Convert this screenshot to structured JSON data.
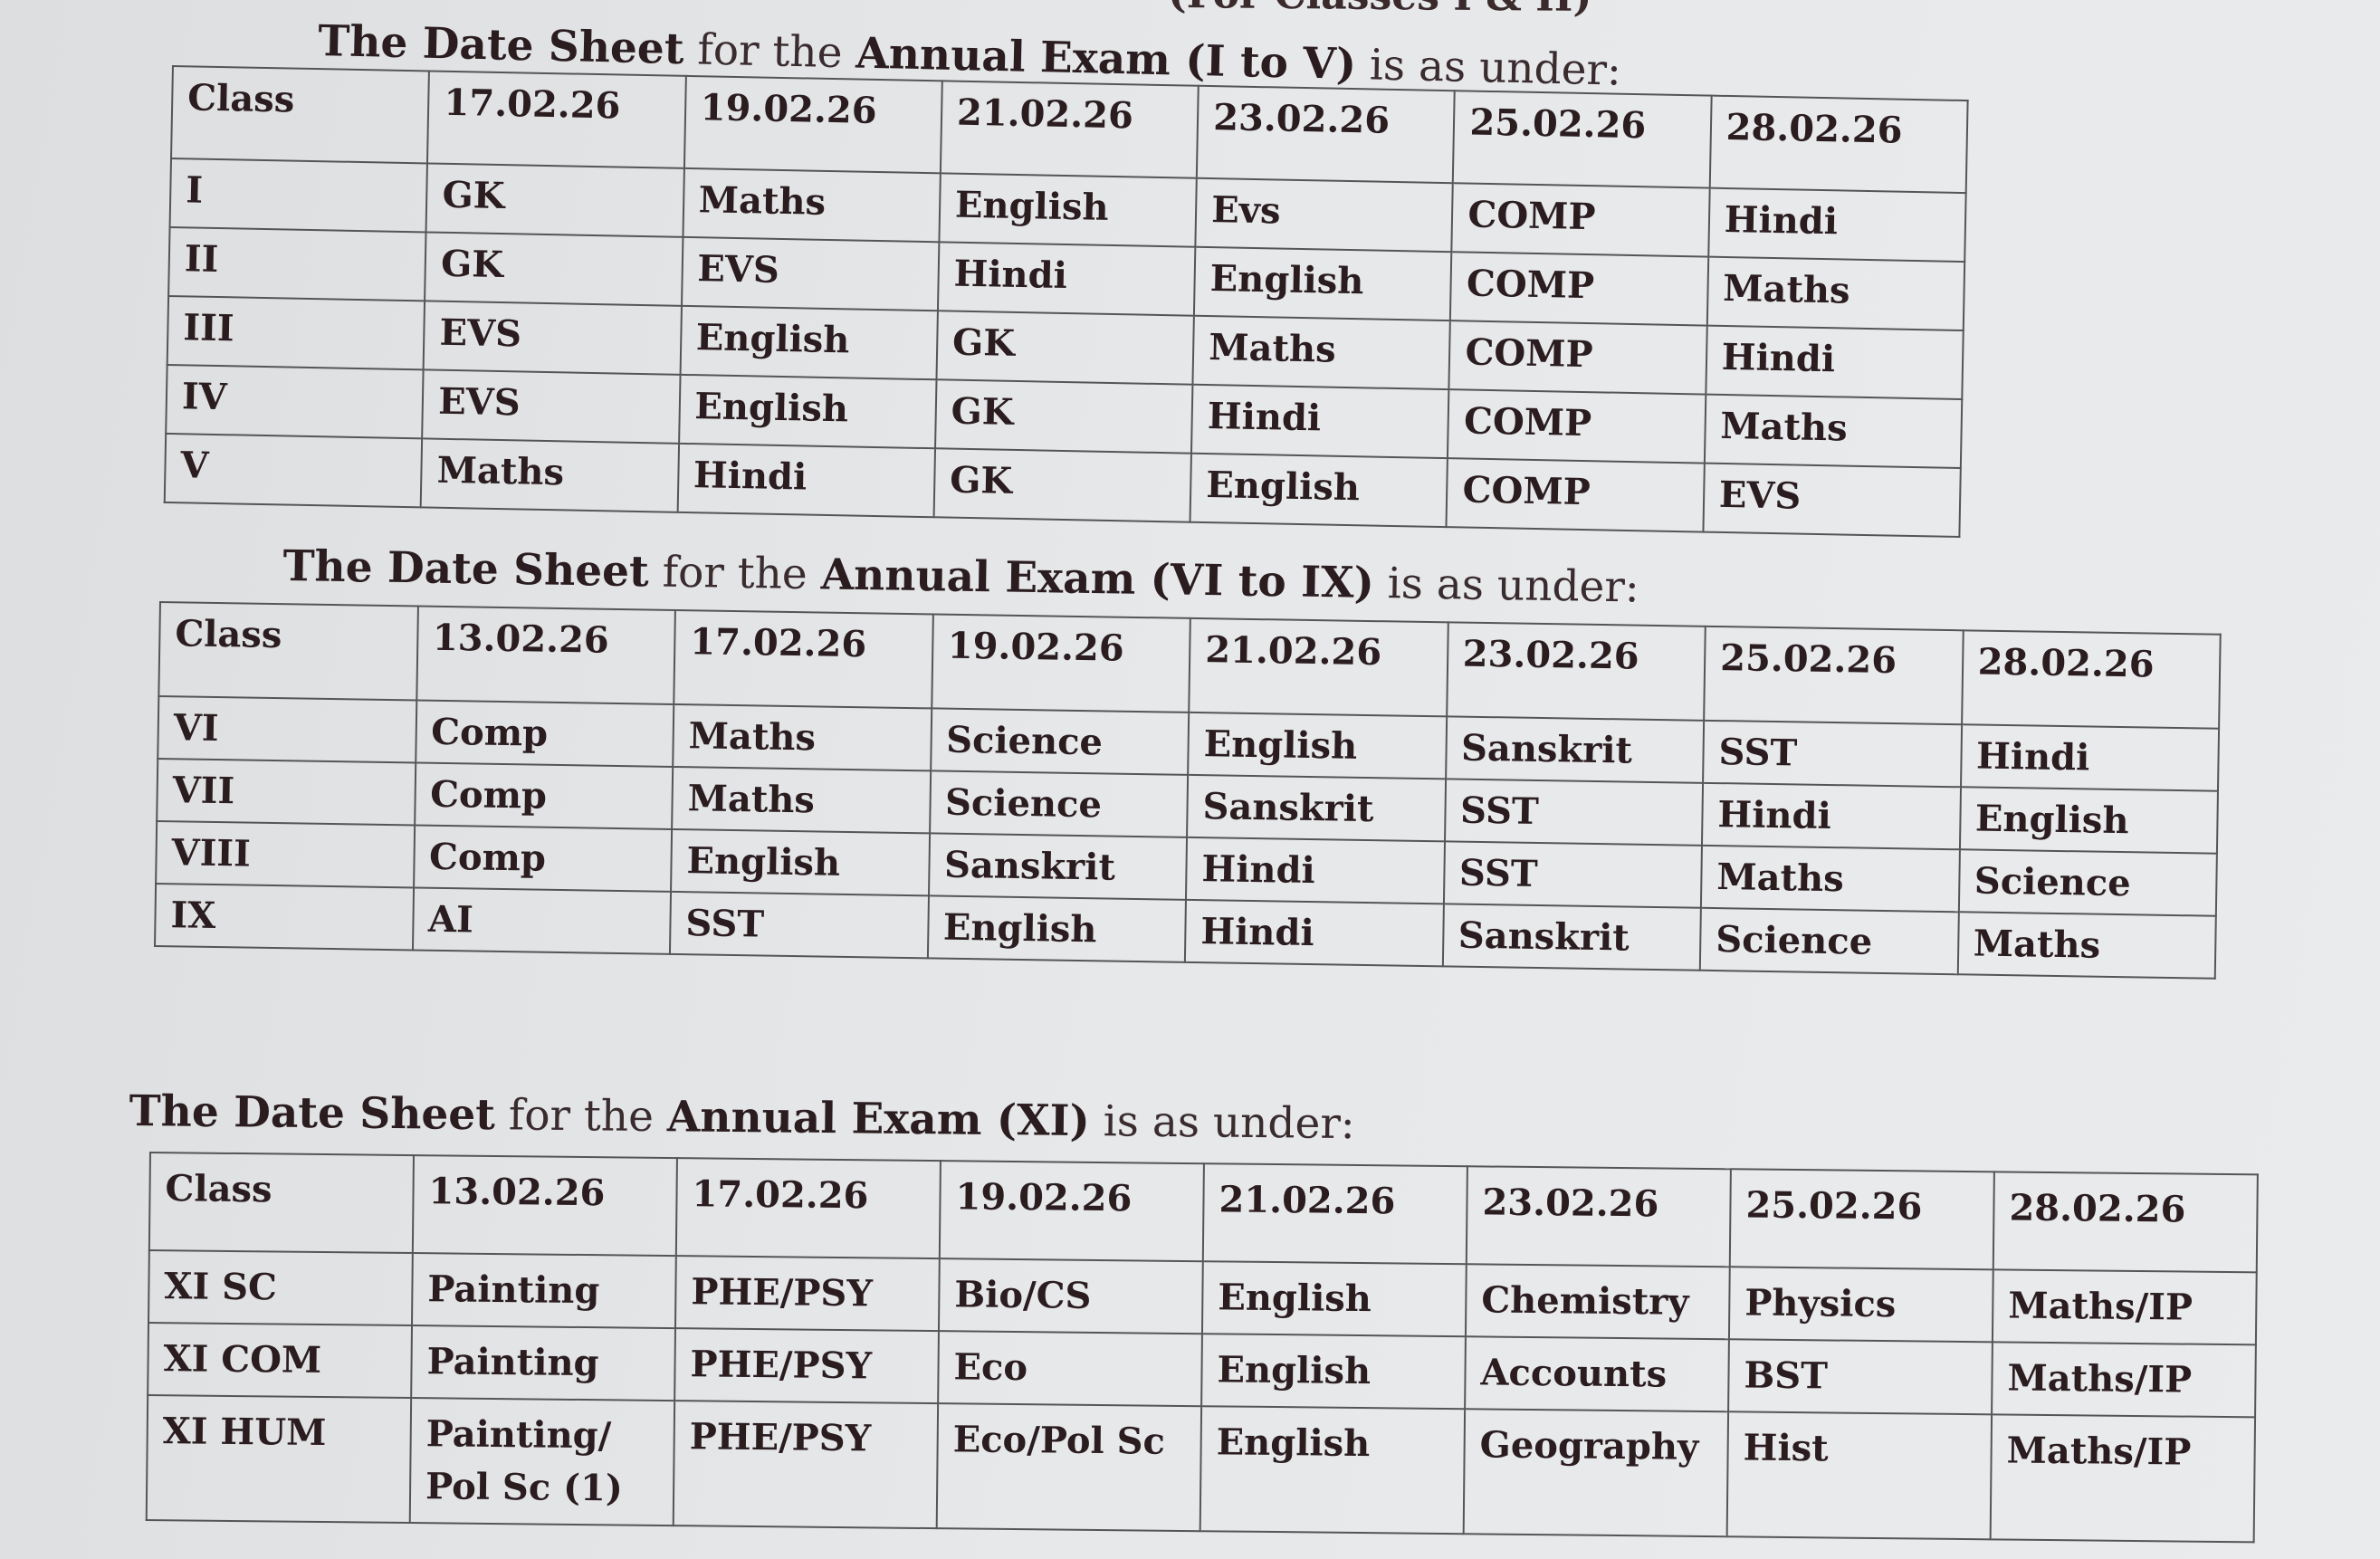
{
  "page_header_fragment": "(For Classes I & II)",
  "sections": [
    {
      "title": {
        "bold1": "The Date Sheet",
        "normal1": " for the ",
        "bold2": "Annual Exam (I to V)",
        "normal2": " is as under:"
      },
      "headers": [
        "Class",
        "17.02.26",
        "19.02.26",
        "21.02.26",
        "23.02.26",
        "25.02.26",
        "28.02.26"
      ],
      "rows": [
        [
          "I",
          "GK",
          "Maths",
          "English",
          "Evs",
          "COMP",
          "Hindi"
        ],
        [
          "II",
          "GK",
          "EVS",
          "Hindi",
          "English",
          "COMP",
          "Maths"
        ],
        [
          "III",
          "EVS",
          "English",
          "GK",
          "Maths",
          "COMP",
          "Hindi"
        ],
        [
          "IV",
          "EVS",
          "English",
          "GK",
          "Hindi",
          "COMP",
          "Maths"
        ],
        [
          "V",
          "Maths",
          "Hindi",
          "GK",
          "English",
          "COMP",
          "EVS"
        ]
      ]
    },
    {
      "title": {
        "bold1": "The Date Sheet",
        "normal1": " for the ",
        "bold2": "Annual Exam (VI to IX)",
        "normal2": " is as under:"
      },
      "headers": [
        "Class",
        "13.02.26",
        "17.02.26",
        "19.02.26",
        "21.02.26",
        "23.02.26",
        "25.02.26",
        "28.02.26"
      ],
      "rows": [
        [
          "VI",
          "Comp",
          "Maths",
          "Science",
          "English",
          "Sanskrit",
          "SST",
          "Hindi"
        ],
        [
          "VII",
          "Comp",
          "Maths",
          "Science",
          "Sanskrit",
          "SST",
          "Hindi",
          "English"
        ],
        [
          "VIII",
          "Comp",
          "English",
          "Sanskrit",
          "Hindi",
          "SST",
          "Maths",
          "Science"
        ],
        [
          "IX",
          "AI",
          "SST",
          "English",
          "Hindi",
          "Sanskrit",
          "Science",
          "Maths"
        ]
      ]
    },
    {
      "title": {
        "bold1": "The Date Sheet",
        "normal1": " for the ",
        "bold2": "Annual Exam (XI)",
        "normal2": " is as under:"
      },
      "headers": [
        "Class",
        "13.02.26",
        "17.02.26",
        "19.02.26",
        "21.02.26",
        "23.02.26",
        "25.02.26",
        "28.02.26"
      ],
      "rows": [
        [
          "XI SC",
          "Painting",
          "PHE/PSY",
          "Bio/CS",
          "English",
          "Chemistry",
          "Physics",
          "Maths/IP"
        ],
        [
          "XI COM",
          "Painting",
          "PHE/PSY",
          "Eco",
          "English",
          "Accounts",
          "BST",
          "Maths/IP"
        ],
        [
          "XI HUM",
          "Painting/ Pol Sc (1)",
          "PHE/PSY",
          "Eco/Pol Sc",
          "English",
          "Geography",
          "Hist",
          "Maths/IP"
        ]
      ]
    }
  ]
}
